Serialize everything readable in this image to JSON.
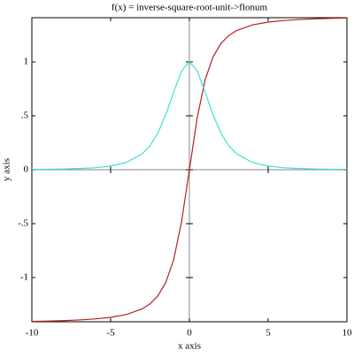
{
  "chart_data": {
    "type": "line",
    "title": "f(x) = inverse-square-root-unit->flonum",
    "x_label": "x axis",
    "y_label": "y axis",
    "x": [
      -10,
      -9,
      -8,
      -7,
      -6,
      -5,
      -4,
      -3,
      -2.5,
      -2,
      -1.5,
      -1,
      -0.5,
      0,
      0.5,
      1,
      1.5,
      2,
      2.5,
      3,
      4,
      5,
      6,
      7,
      8,
      9,
      10
    ],
    "series": [
      {
        "color": "#b22222",
        "values": [
          -1.407,
          -1.404,
          -1.4,
          -1.393,
          -1.384,
          -1.369,
          -1.343,
          -1.291,
          -1.244,
          -1.17,
          -1.047,
          -0.835,
          -0.485,
          0,
          0.485,
          0.835,
          1.047,
          1.17,
          1.244,
          1.291,
          1.343,
          1.369,
          1.384,
          1.393,
          1.4,
          1.404,
          1.407
        ]
      },
      {
        "color": "#40e0d0",
        "values": [
          0.0028,
          0.0042,
          0.0065,
          0.011,
          0.018,
          0.034,
          0.067,
          0.147,
          0.223,
          0.34,
          0.509,
          0.72,
          0.916,
          1,
          0.916,
          0.72,
          0.509,
          0.34,
          0.223,
          0.147,
          0.067,
          0.034,
          0.018,
          0.011,
          0.0065,
          0.0042,
          0.0028
        ]
      }
    ],
    "xlim": [
      -10,
      10
    ],
    "ylim": [
      -1.41,
      1.41
    ],
    "xticks": [
      -10,
      -5,
      0,
      5,
      10
    ],
    "yticks": [
      -1,
      {
        "value": -0.5,
        "label": "-.5"
      },
      0,
      {
        "value": 0.5,
        "label": ".5"
      },
      1
    ]
  }
}
